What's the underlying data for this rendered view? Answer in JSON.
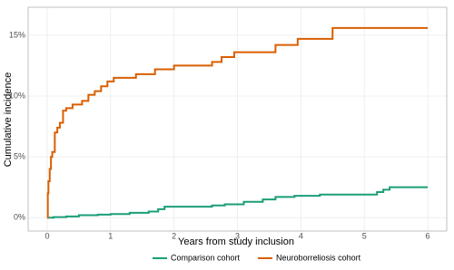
{
  "chart_data": {
    "type": "line",
    "step": "post",
    "x_label": "Years from study inclusion",
    "y_label": "Cumulative incidence",
    "xlim": [
      -0.3,
      6.3
    ],
    "xticks": [
      0,
      1,
      2,
      3,
      4,
      5,
      6
    ],
    "ylim": [
      -1.1,
      17.3
    ],
    "yticks": [
      {
        "value": 0,
        "label": "0%"
      },
      {
        "value": 5,
        "label": "5%"
      },
      {
        "value": 10,
        "label": "10%"
      },
      {
        "value": 15,
        "label": "15%"
      }
    ],
    "grid": true,
    "legend": "bottom",
    "series": [
      {
        "name": "Comparison cohort",
        "color": "#1b9e77",
        "x": [
          0,
          0.1,
          0.3,
          0.5,
          0.8,
          1.0,
          1.3,
          1.6,
          1.75,
          1.85,
          2.6,
          2.8,
          3.1,
          3.4,
          3.6,
          3.9,
          4.3,
          5.2,
          5.3,
          5.4,
          6.0
        ],
        "values": [
          0,
          0.05,
          0.1,
          0.2,
          0.25,
          0.3,
          0.4,
          0.5,
          0.7,
          0.9,
          1.0,
          1.1,
          1.3,
          1.5,
          1.7,
          1.8,
          1.9,
          2.1,
          2.3,
          2.5,
          2.5
        ]
      },
      {
        "name": "Neuroborreliosis cohort",
        "color": "#d95f02",
        "x": [
          0,
          0.01,
          0.02,
          0.04,
          0.06,
          0.08,
          0.12,
          0.16,
          0.2,
          0.25,
          0.3,
          0.4,
          0.55,
          0.65,
          0.75,
          0.85,
          0.95,
          1.05,
          1.4,
          1.7,
          2.0,
          2.6,
          2.75,
          2.95,
          3.6,
          3.95,
          4.5,
          6.0
        ],
        "values": [
          0,
          2,
          3,
          4,
          5,
          5.4,
          7,
          7.4,
          7.8,
          8.8,
          9,
          9.3,
          9.6,
          10.1,
          10.4,
          10.8,
          11.2,
          11.5,
          11.8,
          12.2,
          12.5,
          12.8,
          13.2,
          13.6,
          14.2,
          14.7,
          15.6,
          15.6
        ]
      }
    ]
  }
}
